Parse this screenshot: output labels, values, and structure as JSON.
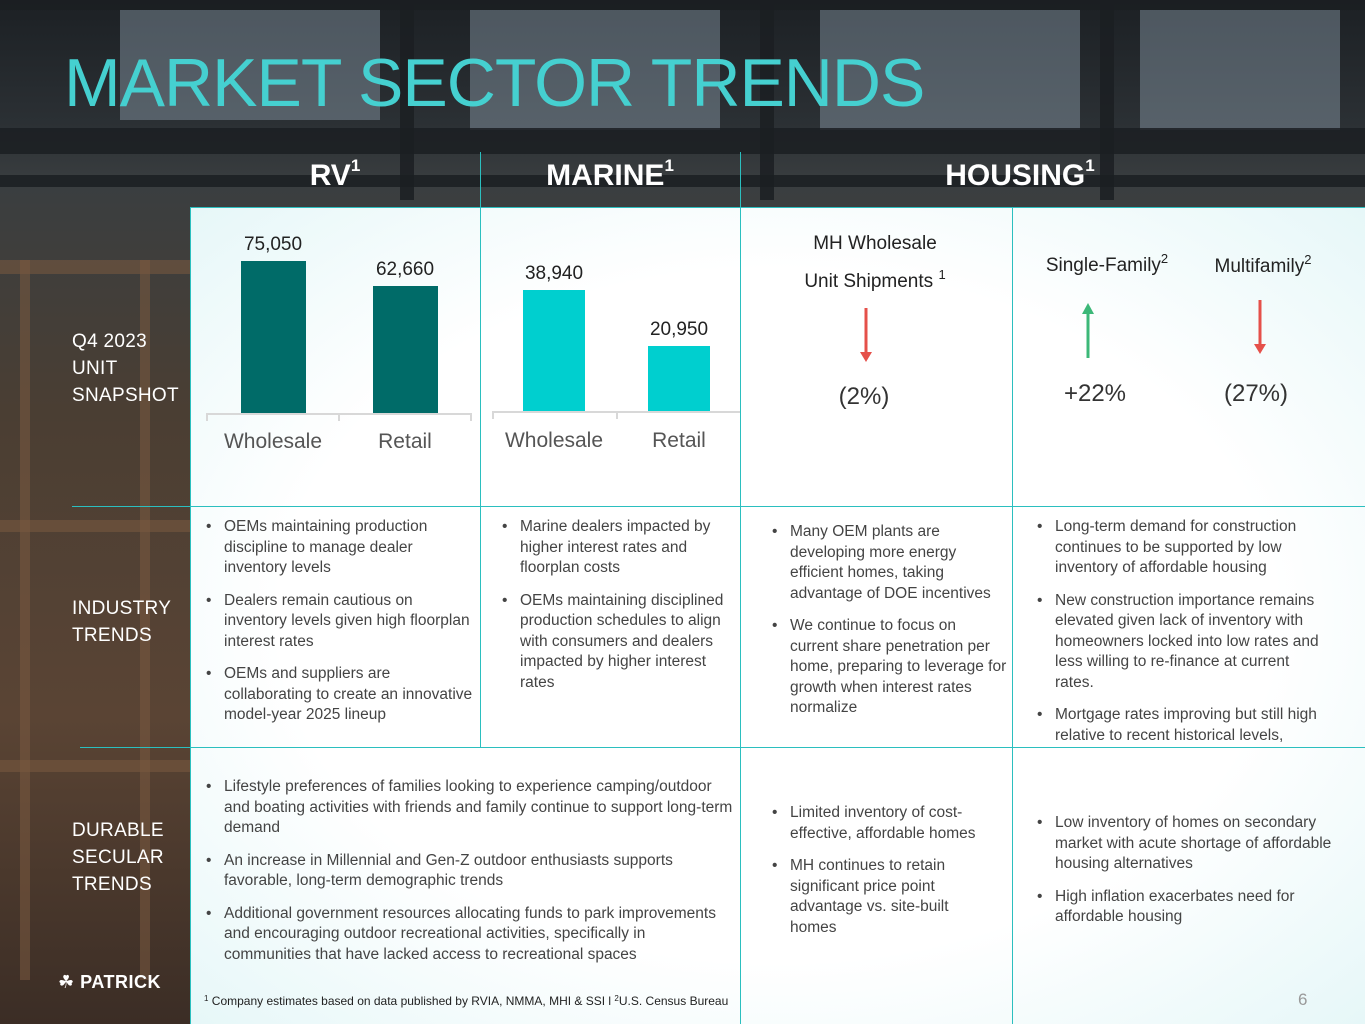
{
  "title": "MARKET SECTOR TRENDS",
  "columns": {
    "rv": {
      "label": "RV",
      "sup": "1"
    },
    "marine": {
      "label": "MARINE",
      "sup": "1"
    },
    "housing": {
      "label": "HOUSING",
      "sup": "1"
    }
  },
  "row_labels": {
    "snapshot": [
      "Q4 2023",
      "UNIT",
      "SNAPSHOT"
    ],
    "industry": [
      "INDUSTRY",
      "TRENDS"
    ],
    "durable": [
      "DURABLE",
      "SECULAR",
      "TRENDS"
    ]
  },
  "chart_data": [
    {
      "type": "bar",
      "section": "RV",
      "categories": [
        "Wholesale",
        "Retail"
      ],
      "values": [
        75050,
        62660
      ],
      "value_labels": [
        "75,050",
        "62,660"
      ],
      "color": "#006b68"
    },
    {
      "type": "bar",
      "section": "MARINE",
      "categories": [
        "Wholesale",
        "Retail"
      ],
      "values": [
        38940,
        20950
      ],
      "value_labels": [
        "38,940",
        "20,950"
      ],
      "color": "#00cfcf"
    }
  ],
  "housing": {
    "mh": {
      "line1": "MH Wholesale",
      "line2": "Unit Shipments",
      "sup": "1",
      "direction": "down",
      "value": "(2%)"
    },
    "single_family": {
      "label": "Single-Family",
      "sup": "2",
      "direction": "up",
      "value": "+22%"
    },
    "multifamily": {
      "label": "Multifamily",
      "sup": "2",
      "direction": "down",
      "value": "(27%)"
    }
  },
  "arrow_colors": {
    "up": "#3cb878",
    "down": "#e5504a"
  },
  "industry_trends": {
    "rv": [
      "OEMs maintaining production discipline to manage dealer inventory levels",
      "Dealers remain cautious on inventory levels given high floorplan interest rates",
      "OEMs and suppliers are collaborating to create an innovative model-year 2025 lineup"
    ],
    "marine": [
      "Marine dealers impacted by higher interest rates and floorplan costs",
      "OEMs maintaining disciplined production schedules to align with consumers and dealers impacted by higher interest rates"
    ],
    "mh": [
      "Many OEM plants are developing more energy efficient homes, taking advantage of DOE incentives",
      "We continue to focus on current share penetration per home, preparing to leverage for growth when interest rates normalize"
    ],
    "residential": [
      "Long-term demand for construction continues to be supported by low inventory of affordable housing",
      "New construction importance remains elevated given lack of inventory with homeowners locked into low rates and less willing to re-finance at current rates.",
      "Mortgage rates improving but still high relative to recent historical levels,"
    ]
  },
  "durable_trends": {
    "rv_marine": [
      "Lifestyle preferences of families looking to experience camping/outdoor and boating activities with friends and family continue to support long-term demand",
      "An increase in Millennial and Gen-Z outdoor enthusiasts supports favorable, long-term demographic trends",
      "Additional government resources allocating funds to park improvements and encouraging outdoor recreational activities, specifically in communities that have lacked access to recreational spaces"
    ],
    "mh": [
      "Limited inventory of cost-effective, affordable homes",
      "MH continues to retain significant price point advantage vs. site-built homes"
    ],
    "residential": [
      "Low inventory of homes on secondary market with acute shortage of affordable housing alternatives",
      "High inflation exacerbates need for affordable housing"
    ]
  },
  "footer": {
    "logo": "PATRICK",
    "logo_icon": "shamrock-icon",
    "footnote_sup1": "1",
    "footnote_text1": " Company estimates based on data published by RVIA, NMMA, MHI & SSI l ",
    "footnote_sup2": "2",
    "footnote_text2": "U.S. Census Bureau",
    "page_number": "6"
  }
}
